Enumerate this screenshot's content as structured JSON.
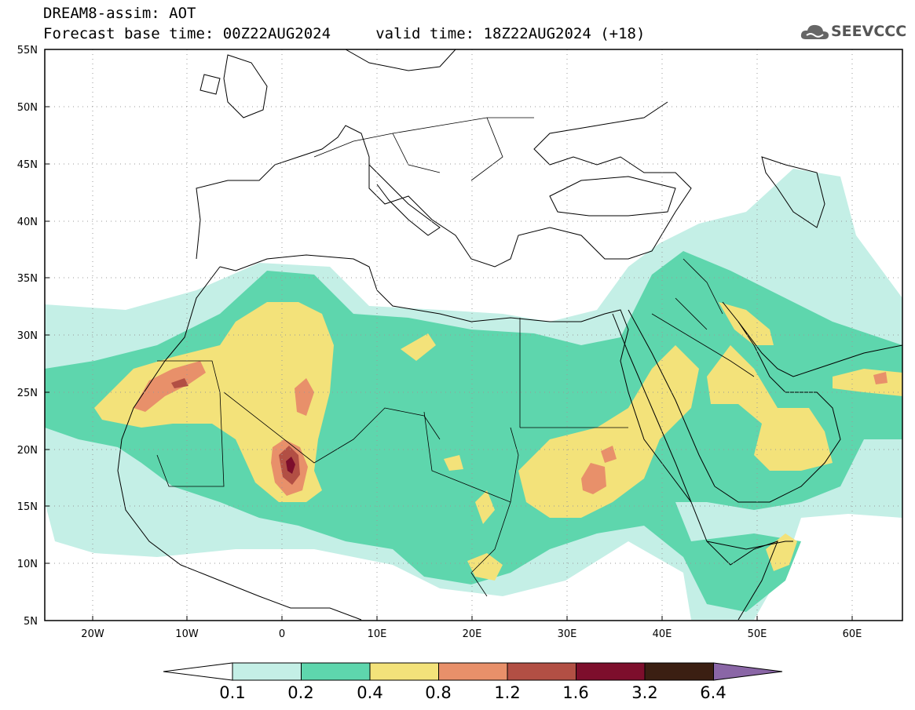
{
  "header": {
    "line1": "DREAM8-assim: AOT",
    "line2": "Forecast base time: 00Z22AUG2024     valid time: 18Z22AUG2024 (+18)"
  },
  "logo": {
    "text": "SEEVCCC",
    "icon": "cloud-icon"
  },
  "map": {
    "lon_range": [
      -25,
      65
    ],
    "lat_range": [
      5,
      55
    ],
    "x_ticks": [
      "20W",
      "10W",
      "0",
      "10E",
      "20E",
      "30E",
      "40E",
      "50E",
      "60E"
    ],
    "y_ticks": [
      "55N",
      "50N",
      "45N",
      "40N",
      "35N",
      "30N",
      "25N",
      "20N",
      "15N",
      "10N",
      "5N"
    ],
    "field": "Aerosol Optical Thickness"
  },
  "colorbar": {
    "labels": [
      "0.1",
      "0.2",
      "0.4",
      "0.8",
      "1.2",
      "1.6",
      "3.2",
      "6.4"
    ],
    "colors": [
      "#ffffff",
      "#c4efe6",
      "#5ed6ad",
      "#f3e27a",
      "#e8906a",
      "#b24f44",
      "#7d0e2c",
      "#3b1f12",
      "#8a66a6"
    ]
  }
}
